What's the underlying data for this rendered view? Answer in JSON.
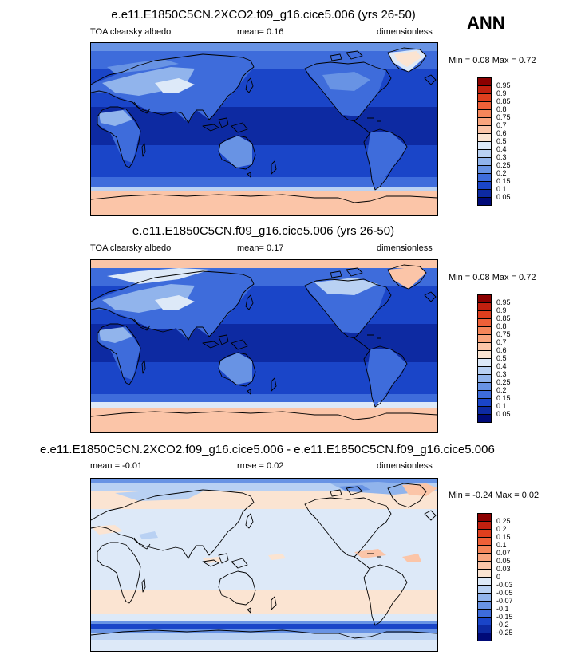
{
  "season": "ANN",
  "panels": [
    {
      "title": "e.e11.E1850C5CN.2XCO2.f09_g16.cice5.006 (yrs 26-50)",
      "left_label": "TOA clearsky albedo",
      "stat_text": "mean=   0.16",
      "units": "dimensionless",
      "minmax": "Min =   0.08 Max =   0.72",
      "colorbar": {
        "labels": [
          "0.95",
          "0.9",
          "0.85",
          "0.8",
          "0.75",
          "0.7",
          "0.6",
          "0.5",
          "0.4",
          "0.3",
          "0.25",
          "0.2",
          "0.15",
          "0.1",
          "0.05"
        ],
        "colors": [
          "#8b0000",
          "#c1200f",
          "#df3f1e",
          "#ee6038",
          "#f5865a",
          "#f9a57e",
          "#fbc5a8",
          "#fbe4d2",
          "#dde9f8",
          "#b9d1f3",
          "#91b4ec",
          "#6893e4",
          "#3e6cdb",
          "#1a45c8",
          "#0d2aa2",
          "#000a78"
        ]
      }
    },
    {
      "title": "e.e11.E1850C5CN.f09_g16.cice5.006 (yrs 26-50)",
      "left_label": "TOA clearsky albedo",
      "stat_text": "mean=   0.17",
      "units": "dimensionless",
      "minmax": "Min =   0.08 Max =   0.72",
      "colorbar": {
        "labels": [
          "0.95",
          "0.9",
          "0.85",
          "0.8",
          "0.75",
          "0.7",
          "0.6",
          "0.5",
          "0.4",
          "0.3",
          "0.25",
          "0.2",
          "0.15",
          "0.1",
          "0.05"
        ],
        "colors": [
          "#8b0000",
          "#c1200f",
          "#df3f1e",
          "#ee6038",
          "#f5865a",
          "#f9a57e",
          "#fbc5a8",
          "#fbe4d2",
          "#dde9f8",
          "#b9d1f3",
          "#91b4ec",
          "#6893e4",
          "#3e6cdb",
          "#1a45c8",
          "#0d2aa2",
          "#000a78"
        ]
      }
    },
    {
      "title": "e.e11.E1850C5CN.2XCO2.f09_g16.cice5.006 - e.e11.E1850C5CN.f09_g16.cice5.006",
      "left_label": "mean =   -0.01",
      "stat_text": "rmse =   0.02",
      "units": "dimensionless",
      "minmax": "Min =  -0.24 Max =   0.02",
      "colorbar": {
        "labels": [
          "0.25",
          "0.2",
          "0.15",
          "0.1",
          "0.07",
          "0.05",
          "0.03",
          "0",
          "-0.03",
          "-0.05",
          "-0.07",
          "-0.1",
          "-0.15",
          "-0.2",
          "-0.25"
        ],
        "colors": [
          "#8b0000",
          "#c1200f",
          "#df3f1e",
          "#ee6038",
          "#f5865a",
          "#f9a57e",
          "#fbc5a8",
          "#fbe4d2",
          "#dde9f8",
          "#b9d1f3",
          "#91b4ec",
          "#6893e4",
          "#3e6cdb",
          "#1a45c8",
          "#0d2aa2",
          "#000a78"
        ]
      }
    }
  ]
}
